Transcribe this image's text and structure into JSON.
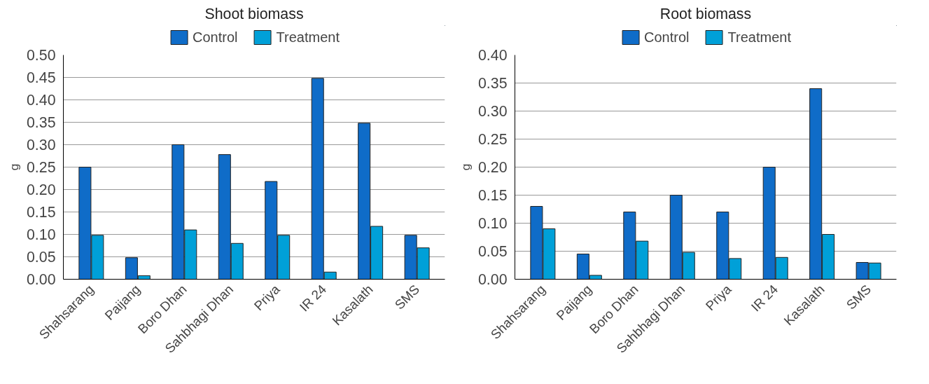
{
  "chart_data": [
    {
      "type": "bar",
      "title": "Shoot biomass",
      "ylabel": "g",
      "categories": [
        "Shahsarang",
        "Paijang",
        "Boro Dhan",
        "Sahbhagi Dhan",
        "Priya",
        "IR 24",
        "Kasalath",
        "SMS"
      ],
      "series": [
        {
          "name": "Control",
          "color": "#0f6cc8",
          "values": [
            0.25,
            0.048,
            0.3,
            0.278,
            0.218,
            0.448,
            0.348,
            0.098
          ]
        },
        {
          "name": "Treatment",
          "color": "#00a0d8",
          "values": [
            0.098,
            0.008,
            0.11,
            0.08,
            0.098,
            0.016,
            0.118,
            0.07
          ]
        }
      ],
      "ylim": [
        0,
        0.5
      ],
      "yticks": [
        {
          "value": 0,
          "label": "0.00"
        },
        {
          "value": 0.05,
          "label": "0.05"
        },
        {
          "value": 0.1,
          "label": "0.10"
        },
        {
          "value": 0.15,
          "label": "0.15"
        },
        {
          "value": 0.2,
          "label": "0.20"
        },
        {
          "value": 0.25,
          "label": "0.25"
        },
        {
          "value": 0.3,
          "label": "0.30"
        },
        {
          "value": 0.35,
          "label": "0.35"
        },
        {
          "value": 0.4,
          "label": "0.40"
        },
        {
          "value": 0.45,
          "label": "0.45"
        },
        {
          "value": 0.5,
          "label": "0.50"
        }
      ],
      "grid": "y",
      "legend": "top"
    },
    {
      "type": "bar",
      "title": "Root biomass",
      "ylabel": "g",
      "categories": [
        "Shahsarang",
        "Paijang",
        "Boro Dhan",
        "Sahbhagi Dhan",
        "Priya",
        "IR 24",
        "Kasalath",
        "SMS"
      ],
      "series": [
        {
          "name": "Control",
          "color": "#0f6cc8",
          "values": [
            0.13,
            0.045,
            0.12,
            0.15,
            0.12,
            0.2,
            0.34,
            0.03
          ]
        },
        {
          "name": "Treatment",
          "color": "#00a0d8",
          "values": [
            0.09,
            0.007,
            0.068,
            0.048,
            0.037,
            0.039,
            0.08,
            0.029
          ]
        }
      ],
      "ylim": [
        0,
        0.4
      ],
      "yticks": [
        {
          "value": 0,
          "label": "0.00"
        },
        {
          "value": 0.05,
          "label": "0.05"
        },
        {
          "value": 0.1,
          "label": "0.10"
        },
        {
          "value": 0.15,
          "label": "0.15"
        },
        {
          "value": 0.2,
          "label": "0.20"
        },
        {
          "value": 0.25,
          "label": "0.25"
        },
        {
          "value": 0.3,
          "label": "0.30"
        },
        {
          "value": 0.35,
          "label": "0.35"
        },
        {
          "value": 0.4,
          "label": "0.40"
        }
      ],
      "grid": "y",
      "legend": "top"
    }
  ]
}
